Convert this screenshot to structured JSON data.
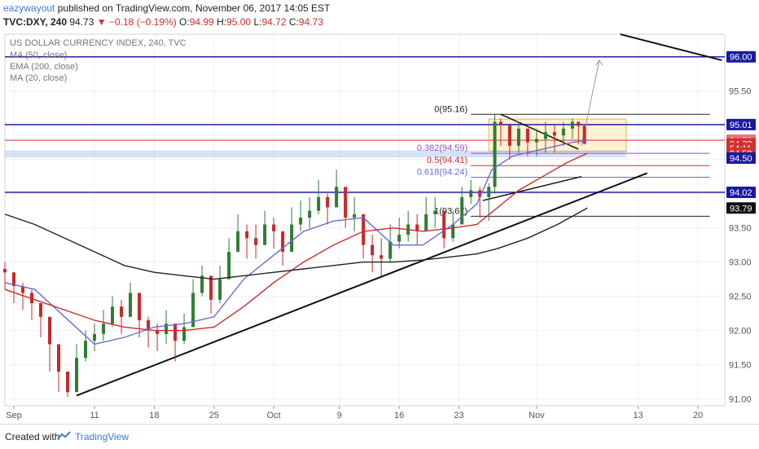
{
  "header": {
    "author": "eazywayout",
    "published_text": "published on TradingView.com, November 06, 2017 14:05 EST",
    "symbol": "TVC:DXY, 240",
    "last": "94.73",
    "change": "▼ −0.18 (−0.19%)",
    "o_label": "O:",
    "o_value": "94.99",
    "h_label": "H:",
    "h_value": "95.00",
    "l_label": "L:",
    "l_value": "94.72",
    "c_label": "C:",
    "c_value": "94.73"
  },
  "legend": {
    "title": "US DOLLAR CURRENCY INDEX, 240, TVC",
    "items": [
      "MA (50, close)",
      "EMA (200, close)",
      "MA (20, close)"
    ]
  },
  "footer": {
    "created_with": "Created with",
    "brand": "TradingView"
  },
  "chart_data": {
    "type": "candlestick",
    "title": "US DOLLAR CURRENCY INDEX, 240, TVC",
    "ylim": [
      90.9,
      96.33
    ],
    "y_ticks": [
      "91.00",
      "91.50",
      "92.00",
      "92.50",
      "93.00",
      "93.50",
      "94.00",
      "94.50",
      "95.00",
      "95.50",
      "96.00"
    ],
    "x_ticks": [
      {
        "label": "Sep",
        "i": 3
      },
      {
        "label": "11",
        "i": 30
      },
      {
        "label": "18",
        "i": 50
      },
      {
        "label": "25",
        "i": 70
      },
      {
        "label": "Oct",
        "i": 90
      },
      {
        "label": "9",
        "i": 112
      },
      {
        "label": "16",
        "i": 132
      },
      {
        "label": "23",
        "i": 152
      },
      {
        "label": "Nov",
        "i": 178
      },
      {
        "label": "13",
        "i": 212
      },
      {
        "label": "20",
        "i": 232
      }
    ],
    "x_count": 242,
    "candles": {
      "t": [
        0,
        3,
        6,
        9,
        12,
        15,
        18,
        21,
        24,
        27,
        30,
        33,
        36,
        39,
        42,
        45,
        48,
        51,
        54,
        57,
        60,
        63,
        66,
        69,
        72,
        75,
        78,
        81,
        84,
        87,
        90,
        93,
        96,
        99,
        102,
        105,
        108,
        111,
        114,
        117,
        120,
        123,
        126,
        129,
        132,
        135,
        138,
        141,
        144,
        147,
        150,
        153,
        156,
        159,
        162,
        164,
        166,
        169,
        172,
        175,
        178,
        181,
        184,
        187,
        190,
        192,
        194
      ],
      "close": [
        92.85,
        92.65,
        92.55,
        92.4,
        92.2,
        91.8,
        91.4,
        91.1,
        91.6,
        91.85,
        91.95,
        92.1,
        92.35,
        92.2,
        92.55,
        92.15,
        92.0,
        91.95,
        92.1,
        91.85,
        92.05,
        92.55,
        92.8,
        92.45,
        92.75,
        93.15,
        93.45,
        93.35,
        93.25,
        93.55,
        93.45,
        93.15,
        93.55,
        93.65,
        93.75,
        93.95,
        93.8,
        94.1,
        93.65,
        93.7,
        93.25,
        93.1,
        93.05,
        93.3,
        93.4,
        93.55,
        93.45,
        93.7,
        93.75,
        93.35,
        93.55,
        93.95,
        94.05,
        93.95,
        94.1,
        95.05,
        95.0,
        94.7,
        94.95,
        94.75,
        94.8,
        94.9,
        94.85,
        94.95,
        95.05,
        94.99,
        94.73
      ],
      "high": [
        93.0,
        92.8,
        92.7,
        92.6,
        92.4,
        92.0,
        91.7,
        91.4,
        91.8,
        92.0,
        92.1,
        92.3,
        92.5,
        92.45,
        92.7,
        92.4,
        92.2,
        92.1,
        92.3,
        92.1,
        92.25,
        92.75,
        92.95,
        92.75,
        92.95,
        93.35,
        93.7,
        93.55,
        93.55,
        93.75,
        93.65,
        93.45,
        93.8,
        93.9,
        93.95,
        94.2,
        94.0,
        94.35,
        93.95,
        93.95,
        93.55,
        93.4,
        93.35,
        93.55,
        93.65,
        93.75,
        93.7,
        93.95,
        93.95,
        93.75,
        93.75,
        94.1,
        94.2,
        94.1,
        94.15,
        95.16,
        95.1,
        94.95,
        95.05,
        94.95,
        94.95,
        95.05,
        95.0,
        95.05,
        95.1,
        95.0,
        95.0
      ],
      "low": [
        92.6,
        92.4,
        92.3,
        92.15,
        91.9,
        91.4,
        91.1,
        91.03,
        91.3,
        91.55,
        91.7,
        91.85,
        92.05,
        91.95,
        92.2,
        91.9,
        91.75,
        91.7,
        91.8,
        91.55,
        91.8,
        92.2,
        92.5,
        92.25,
        92.4,
        92.85,
        93.15,
        93.05,
        93.05,
        93.25,
        93.2,
        92.95,
        93.3,
        93.45,
        93.5,
        93.7,
        93.55,
        93.8,
        93.5,
        93.45,
        93.05,
        92.85,
        92.8,
        93.0,
        93.2,
        93.3,
        93.25,
        93.45,
        93.5,
        93.2,
        93.3,
        93.7,
        93.85,
        93.65,
        93.6,
        94.0,
        94.7,
        94.5,
        94.6,
        94.55,
        94.55,
        94.6,
        94.6,
        94.7,
        94.8,
        94.72,
        94.72
      ]
    },
    "indicators": [
      {
        "name": "MA (20, close)",
        "color": "#6b6bd6",
        "x": [
          0,
          10,
          20,
          30,
          40,
          50,
          60,
          70,
          80,
          90,
          100,
          110,
          120,
          130,
          140,
          150,
          158,
          163,
          170,
          180,
          190,
          195
        ],
        "y": [
          92.7,
          92.6,
          92.2,
          91.8,
          91.9,
          92.05,
          92.1,
          92.2,
          92.75,
          93.1,
          93.45,
          93.6,
          93.65,
          93.25,
          93.25,
          93.55,
          93.85,
          94.35,
          94.55,
          94.65,
          94.75,
          94.78
        ]
      },
      {
        "name": "MA (50, close)",
        "color": "#d22a2a",
        "x": [
          0,
          10,
          20,
          30,
          40,
          50,
          60,
          70,
          80,
          90,
          100,
          110,
          120,
          130,
          140,
          150,
          158,
          165,
          172,
          180,
          188,
          195
        ],
        "y": [
          92.6,
          92.45,
          92.3,
          92.15,
          92.05,
          92.0,
          92.0,
          92.05,
          92.35,
          92.7,
          93.0,
          93.25,
          93.45,
          93.5,
          93.45,
          93.5,
          93.55,
          93.8,
          94.05,
          94.25,
          94.45,
          94.59
        ]
      },
      {
        "name": "EMA (200, close)",
        "color": "#222222",
        "x": [
          0,
          10,
          20,
          30,
          40,
          50,
          60,
          70,
          80,
          90,
          100,
          110,
          120,
          130,
          140,
          150,
          158,
          165,
          175,
          185,
          195
        ],
        "y": [
          93.7,
          93.55,
          93.35,
          93.15,
          92.95,
          92.85,
          92.8,
          92.75,
          92.8,
          92.85,
          92.9,
          92.95,
          93.0,
          93.0,
          93.03,
          93.08,
          93.12,
          93.2,
          93.35,
          93.55,
          93.79
        ]
      }
    ],
    "hlines": [
      {
        "y": 96.0,
        "color": "#2222aa",
        "tag": "96.00"
      },
      {
        "y": 95.01,
        "color": "#2222aa",
        "tag": "95.01"
      },
      {
        "y": 94.78,
        "color": "#e57373",
        "tag": "94.78"
      },
      {
        "y": 94.02,
        "color": "#2222aa",
        "tag": "94.02"
      }
    ],
    "fib": {
      "x_start": 162,
      "x_end": 236,
      "levels": [
        {
          "label": "0(95.16)",
          "y": 95.16,
          "color": "#222222"
        },
        {
          "label": "0.382(94.59)",
          "y": 94.59,
          "color": "#8855cc"
        },
        {
          "label": "0.5(94.41)",
          "y": 94.41,
          "color": "#d32f2f"
        },
        {
          "label": "0.618(94.24)",
          "y": 94.24,
          "color": "#6b6bd6"
        },
        {
          "label": "1(93.67)",
          "y": 93.67,
          "color": "#222222"
        }
      ]
    },
    "price_tags": [
      {
        "label": "96.00",
        "y": 96.0,
        "bg": "#1a1aa0",
        "fg": "#ffffff"
      },
      {
        "label": "95.01",
        "y": 95.01,
        "bg": "#1a1aa0",
        "fg": "#ffffff"
      },
      {
        "label": "94.78",
        "y": 94.78,
        "bg": "#e57373",
        "fg": "#ffffff"
      },
      {
        "label": "94.73",
        "y": 94.73,
        "bg": "#d32f2f",
        "fg": "#ffffff"
      },
      {
        "label": "54:11",
        "y": 94.66,
        "bg": "#d32f2f",
        "fg": "#ffffff"
      },
      {
        "label": "94.59",
        "y": 94.59,
        "bg": "#d32f2f",
        "fg": "#ffffff"
      },
      {
        "label": "94.50",
        "y": 94.52,
        "bg": "#1a1aa0",
        "fg": "#ffffff"
      },
      {
        "label": "94.02",
        "y": 94.02,
        "bg": "#1a1aa0",
        "fg": "#ffffff"
      },
      {
        "label": "93.79",
        "y": 93.79,
        "bg": "#111111",
        "fg": "#ffffff"
      }
    ],
    "colors": {
      "up": "#2e7d32",
      "down": "#c62828",
      "axis_text": "#555555",
      "grid": "#eef0f4"
    }
  }
}
